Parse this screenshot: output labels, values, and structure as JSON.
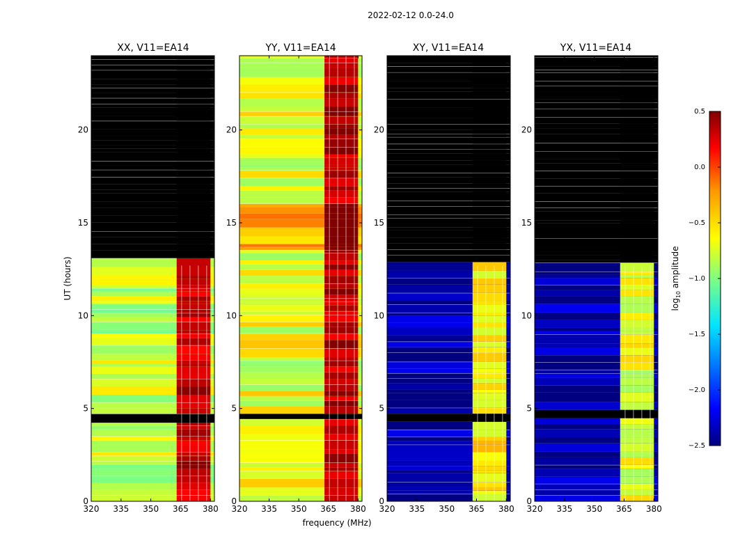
{
  "figure": {
    "suptitle": "2022-02-12 0.0-24.0",
    "ylabel": "UT (hours)",
    "xlabel": "frequency (MHz)"
  },
  "chart_data": {
    "type": "heatmap",
    "xlim": [
      320,
      382
    ],
    "ylim": [
      0,
      24
    ],
    "xticks": [
      320,
      335,
      350,
      365,
      380
    ],
    "yticks": [
      0,
      5,
      10,
      15,
      20
    ],
    "rfi_band_mhz": [
      363,
      380
    ],
    "flagged_hours": [
      [
        4.2,
        4.6
      ],
      [
        12.7,
        24
      ]
    ],
    "panels": [
      {
        "id": "xx",
        "title": "XX, V11=EA14",
        "polarization": "XX",
        "base_log10": -0.8,
        "rfi_log10": 0.3,
        "upper_flagged": true
      },
      {
        "id": "yy",
        "title": "YY, V11=EA14",
        "polarization": "YY",
        "base_log10": -0.7,
        "rfi_log10": 0.35,
        "upper_flagged": false
      },
      {
        "id": "xy",
        "title": "XY, V11=EA14",
        "polarization": "XY",
        "base_log10": -2.4,
        "rfi_log10": -0.6,
        "upper_flagged": true
      },
      {
        "id": "yx",
        "title": "YX, V11=EA14",
        "polarization": "YX",
        "base_log10": -2.4,
        "rfi_log10": -0.7,
        "upper_flagged": true
      }
    ],
    "colorbar": {
      "label": "log10 amplitude",
      "label_main": "log",
      "label_sub": "10",
      "label_rest": " amplitude",
      "range": [
        -2.5,
        0.5
      ],
      "ticks": [
        "0.5",
        "0.0",
        "−0.5",
        "−1.0",
        "−1.5",
        "−2.0",
        "−2.5"
      ],
      "tick_values": [
        0.5,
        0.0,
        -0.5,
        -1.0,
        -1.5,
        -2.0,
        -2.5
      ],
      "colormap": "jet",
      "flagged_color": "#000000"
    }
  }
}
